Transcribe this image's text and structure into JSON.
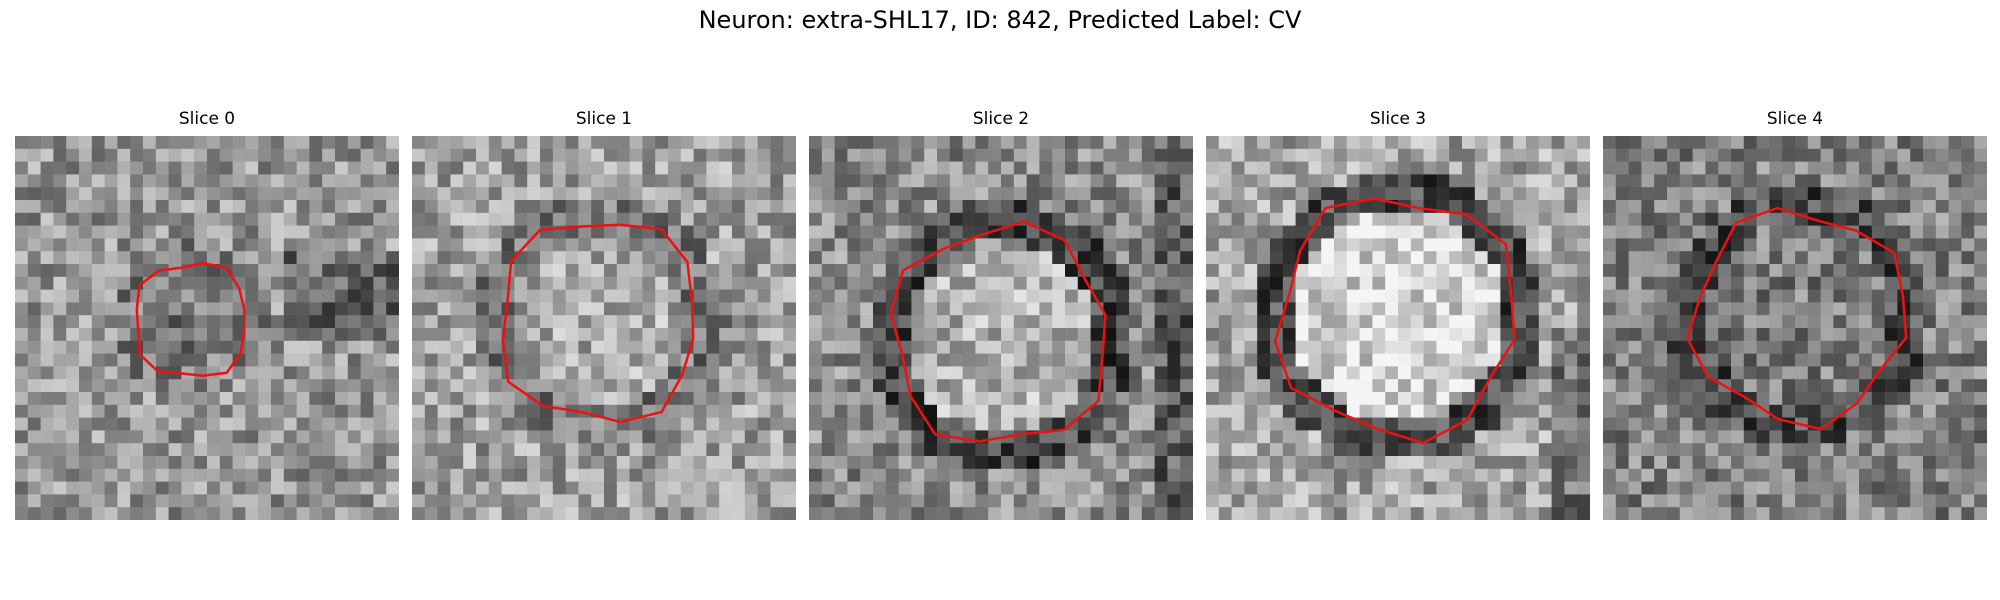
{
  "figure": {
    "title": "Neuron: extra-SHL17, ID: 842, Predicted Label: CV"
  },
  "panels": [
    {
      "title": "Slice 0"
    },
    {
      "title": "Slice 1"
    },
    {
      "title": "Slice 2"
    },
    {
      "title": "Slice 3"
    },
    {
      "title": "Slice 4"
    }
  ],
  "style": {
    "contour_color": "#ee1111"
  }
}
